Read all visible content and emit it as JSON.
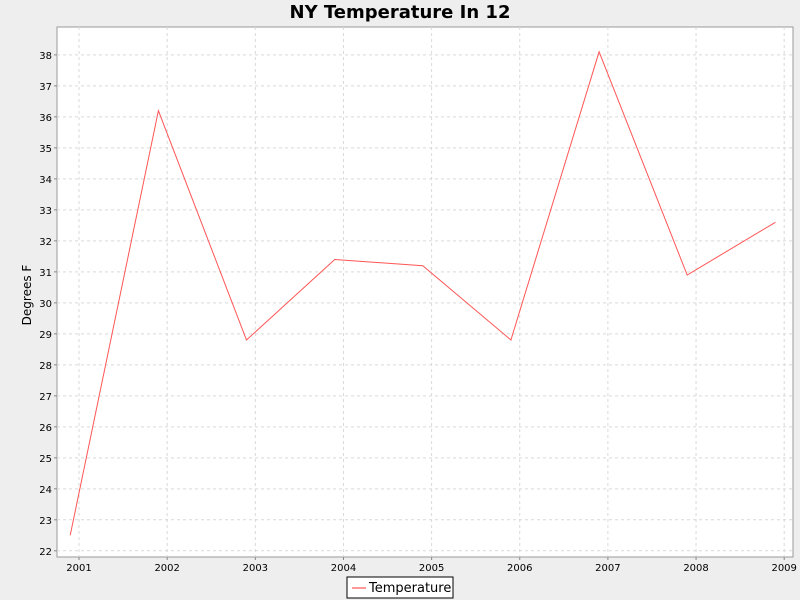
{
  "chart_data": {
    "type": "line",
    "title": "NY Temperature In 12",
    "xlabel": "",
    "ylabel": "Degrees F",
    "x": [
      2000.9,
      2001.9,
      2002.9,
      2003.9,
      2004.9,
      2005.9,
      2006.9,
      2007.9,
      2008.9
    ],
    "xticks": [
      2001,
      2002,
      2003,
      2004,
      2005,
      2006,
      2007,
      2008,
      2009
    ],
    "yticks": [
      22,
      23,
      24,
      25,
      26,
      27,
      28,
      29,
      30,
      31,
      32,
      33,
      34,
      35,
      36,
      37,
      38
    ],
    "xlim": [
      2000.75,
      2009.1
    ],
    "ylim": [
      21.8,
      38.9
    ],
    "grid": true,
    "legend_position": "bottom",
    "series": [
      {
        "name": "Temperature",
        "color": "#ff5555",
        "values": [
          22.5,
          36.2,
          28.8,
          31.4,
          31.2,
          28.8,
          38.1,
          30.9,
          32.6
        ]
      }
    ]
  }
}
